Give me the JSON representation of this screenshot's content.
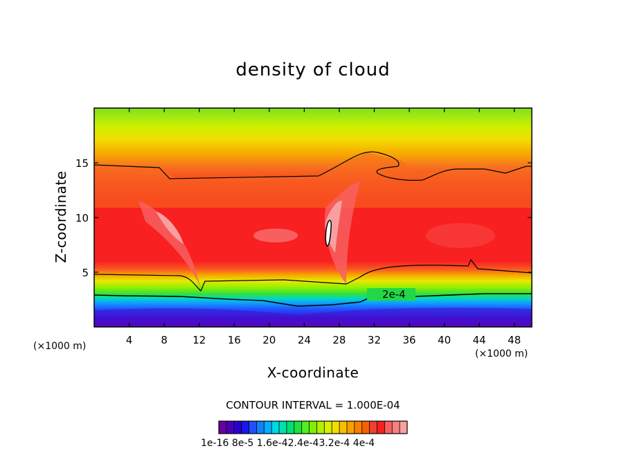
{
  "chart_data": {
    "type": "contour",
    "title": "density of cloud",
    "xlabel": "X-coordinate",
    "ylabel": "Z-coordinate",
    "x_scale_label": "(×1000 m)",
    "x_scale_label_2": "(×1000 m)",
    "xlim": [
      0,
      50
    ],
    "ylim": [
      0,
      20
    ],
    "xticks": [
      4,
      8,
      12,
      16,
      20,
      24,
      28,
      32,
      36,
      40,
      44,
      48
    ],
    "yticks": [
      5,
      10,
      15
    ],
    "contour_interval_text": "CONTOUR INTERVAL = 1.000E-04",
    "contour_line_label": "2e-4",
    "colorbar_tick_text": "1e-16 8e-5 1.6e-42.4e-43.2e-4 4e-4",
    "colorbar_range": [
      1e-16,
      0.0004
    ],
    "colorbar_levels": 21,
    "colors": {
      "colorbar": [
        "#6a00a0",
        "#4a00b8",
        "#2a00d0",
        "#1818e8",
        "#2050ff",
        "#1080ff",
        "#00b0ff",
        "#00d8e8",
        "#00e0b0",
        "#00e070",
        "#20e040",
        "#50f020",
        "#80f000",
        "#b0f000",
        "#d8f000",
        "#f0e000",
        "#f8c000",
        "#f8a000",
        "#f88000",
        "#f86000",
        "#f04030",
        "#f82020",
        "#f86060",
        "#f88080",
        "#f8a0a0"
      ]
    }
  }
}
